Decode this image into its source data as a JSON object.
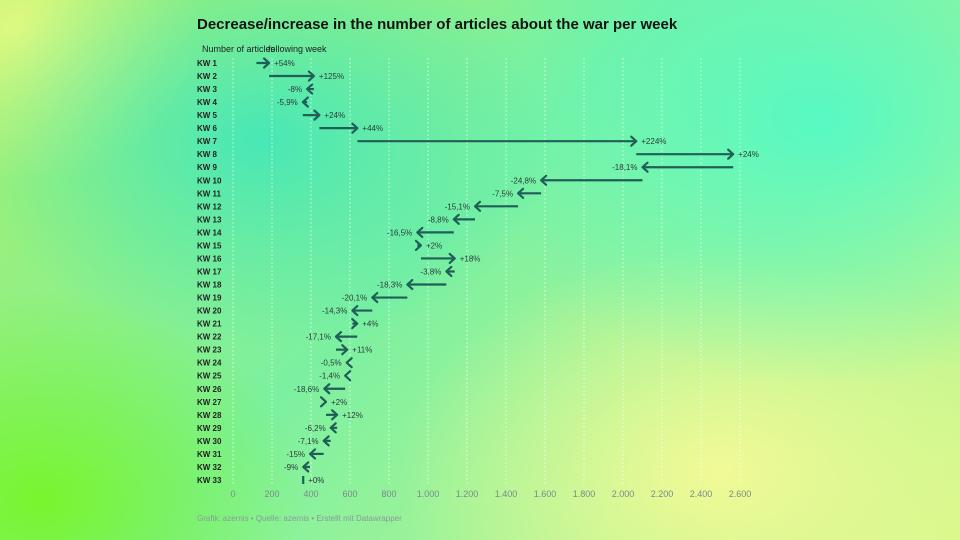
{
  "chart_data": {
    "type": "arrow",
    "title": "Decrease/increase in the number of articles about the war per week",
    "column_headers": [
      "Number of articles",
      "following week"
    ],
    "footer": "Grafik: azernis • Quelle: azernis • Erstellt mit Datawrapper",
    "xlim": [
      0,
      2600
    ],
    "xticks": [
      "0",
      "200",
      "400",
      "600",
      "800",
      "1.000",
      "1.200",
      "1.400",
      "1.600",
      "1.800",
      "2.000",
      "2.200",
      "2.400",
      "2.600"
    ],
    "arrow_color": "#1f5f57",
    "rows": [
      {
        "label": "KW 1",
        "start": 120,
        "end": 185,
        "change": "+54%"
      },
      {
        "label": "KW 2",
        "start": 185,
        "end": 415,
        "change": "+125%"
      },
      {
        "label": "KW 3",
        "start": 415,
        "end": 380,
        "change": "-8%"
      },
      {
        "label": "KW 4",
        "start": 380,
        "end": 358,
        "change": "-5,9%"
      },
      {
        "label": "KW 5",
        "start": 358,
        "end": 443,
        "change": "+24%"
      },
      {
        "label": "KW 6",
        "start": 443,
        "end": 638,
        "change": "+44%"
      },
      {
        "label": "KW 7",
        "start": 638,
        "end": 2068,
        "change": "+224%"
      },
      {
        "label": "KW 8",
        "start": 2068,
        "end": 2565,
        "change": "+24%"
      },
      {
        "label": "KW 9",
        "start": 2565,
        "end": 2100,
        "change": "-18,1%"
      },
      {
        "label": "KW 10",
        "start": 2100,
        "end": 1580,
        "change": "-24,8%"
      },
      {
        "label": "KW 11",
        "start": 1580,
        "end": 1462,
        "change": "-7,5%"
      },
      {
        "label": "KW 12",
        "start": 1462,
        "end": 1241,
        "change": "-15,1%"
      },
      {
        "label": "KW 13",
        "start": 1241,
        "end": 1132,
        "change": "-8,8%"
      },
      {
        "label": "KW 14",
        "start": 1132,
        "end": 945,
        "change": "-16,5%"
      },
      {
        "label": "KW 15",
        "start": 945,
        "end": 964,
        "change": "+2%"
      },
      {
        "label": "KW 16",
        "start": 964,
        "end": 1137,
        "change": "+18%"
      },
      {
        "label": "KW 17",
        "start": 1137,
        "end": 1094,
        "change": "-3,8%"
      },
      {
        "label": "KW 18",
        "start": 1094,
        "end": 894,
        "change": "-18,3%"
      },
      {
        "label": "KW 19",
        "start": 894,
        "end": 714,
        "change": "-20,1%"
      },
      {
        "label": "KW 20",
        "start": 714,
        "end": 612,
        "change": "-14,3%"
      },
      {
        "label": "KW 21",
        "start": 612,
        "end": 637,
        "change": "+4%"
      },
      {
        "label": "KW 22",
        "start": 637,
        "end": 528,
        "change": "-17,1%"
      },
      {
        "label": "KW 23",
        "start": 528,
        "end": 586,
        "change": "+11%"
      },
      {
        "label": "KW 24",
        "start": 586,
        "end": 583,
        "change": "-0,5%"
      },
      {
        "label": "KW 25",
        "start": 583,
        "end": 575,
        "change": "-1,4%"
      },
      {
        "label": "KW 26",
        "start": 575,
        "end": 468,
        "change": "-18,6%"
      },
      {
        "label": "KW 27",
        "start": 468,
        "end": 477,
        "change": "+2%"
      },
      {
        "label": "KW 28",
        "start": 477,
        "end": 534,
        "change": "+12%"
      },
      {
        "label": "KW 29",
        "start": 534,
        "end": 501,
        "change": "-6,2%"
      },
      {
        "label": "KW 30",
        "start": 501,
        "end": 465,
        "change": "-7,1%"
      },
      {
        "label": "KW 31",
        "start": 465,
        "end": 395,
        "change": "-15%"
      },
      {
        "label": "KW 32",
        "start": 395,
        "end": 360,
        "change": "-9%"
      },
      {
        "label": "KW 33",
        "start": 360,
        "end": 360,
        "change": "+0%"
      }
    ]
  }
}
